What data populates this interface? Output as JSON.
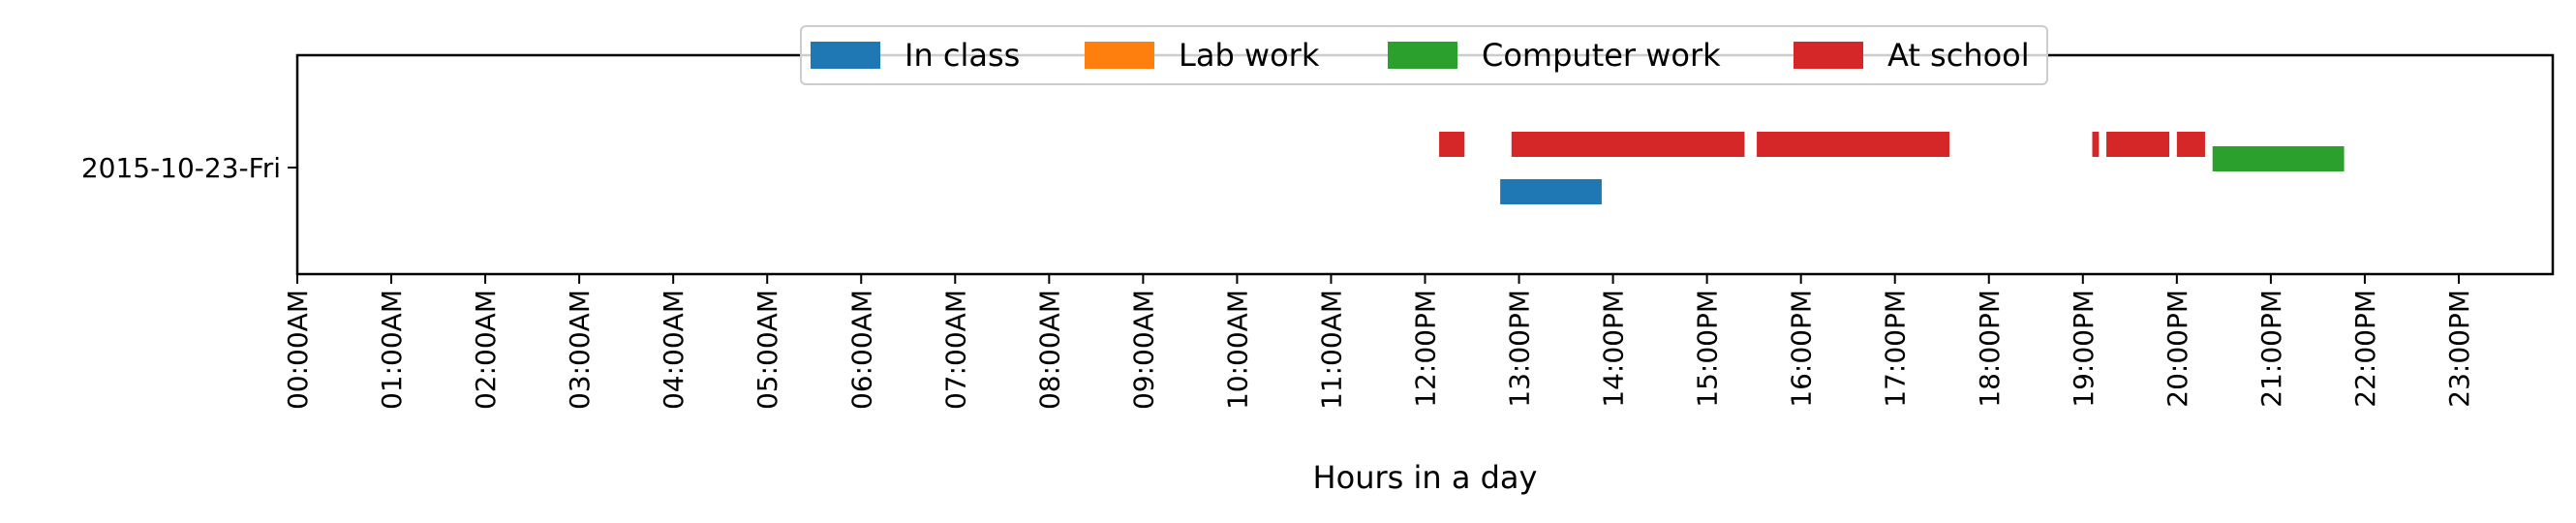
{
  "chart_data": {
    "type": "timeline",
    "title": "",
    "xlabel": "Hours in a day",
    "ylabel": "",
    "xlim": [
      0,
      24
    ],
    "x_ticks": [
      {
        "value": 0,
        "label": "00:00AM"
      },
      {
        "value": 1,
        "label": "01:00AM"
      },
      {
        "value": 2,
        "label": "02:00AM"
      },
      {
        "value": 3,
        "label": "03:00AM"
      },
      {
        "value": 4,
        "label": "04:00AM"
      },
      {
        "value": 5,
        "label": "05:00AM"
      },
      {
        "value": 6,
        "label": "06:00AM"
      },
      {
        "value": 7,
        "label": "07:00AM"
      },
      {
        "value": 8,
        "label": "08:00AM"
      },
      {
        "value": 9,
        "label": "09:00AM"
      },
      {
        "value": 10,
        "label": "10:00AM"
      },
      {
        "value": 11,
        "label": "11:00AM"
      },
      {
        "value": 12,
        "label": "12:00PM"
      },
      {
        "value": 13,
        "label": "13:00PM"
      },
      {
        "value": 14,
        "label": "14:00PM"
      },
      {
        "value": 15,
        "label": "15:00PM"
      },
      {
        "value": 16,
        "label": "16:00PM"
      },
      {
        "value": 17,
        "label": "17:00PM"
      },
      {
        "value": 18,
        "label": "18:00PM"
      },
      {
        "value": 19,
        "label": "19:00PM"
      },
      {
        "value": 20,
        "label": "20:00PM"
      },
      {
        "value": 21,
        "label": "21:00PM"
      },
      {
        "value": 22,
        "label": "22:00PM"
      },
      {
        "value": 23,
        "label": "23:00PM"
      }
    ],
    "categories": [
      "2015-10-23-Fri"
    ],
    "legend_position": "top-center",
    "grid": false,
    "series": [
      {
        "name": "In class",
        "color": "#1f77b4",
        "intervals": [
          [
            12.8,
            13.88
          ]
        ]
      },
      {
        "name": "Lab work",
        "color": "#ff7f0e",
        "intervals": []
      },
      {
        "name": "Computer work",
        "color": "#2ca02c",
        "intervals": [
          [
            20.38,
            21.78
          ]
        ]
      },
      {
        "name": "At school",
        "color": "#d62728",
        "intervals": [
          [
            12.15,
            12.42
          ],
          [
            12.92,
            15.4
          ],
          [
            15.53,
            17.58
          ],
          [
            19.1,
            19.17
          ],
          [
            19.25,
            19.92
          ],
          [
            20.0,
            20.3
          ]
        ]
      }
    ]
  }
}
